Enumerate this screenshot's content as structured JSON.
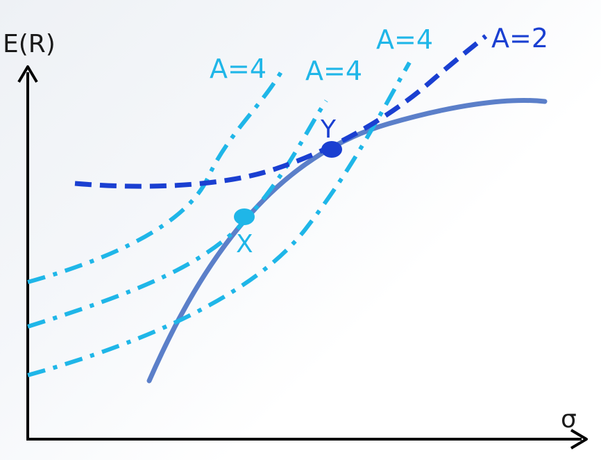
{
  "axes": {
    "y_label": "E(R)",
    "x_label": "σ"
  },
  "curves": {
    "frontier": {
      "color": "#5b7fc9"
    },
    "indifference_a2": {
      "label": "A=2",
      "color": "#1a3fd1"
    },
    "indifference_a4_left": {
      "label": "A=4",
      "color": "#1fb6e8"
    },
    "indifference_a4_middle": {
      "label": "A=4",
      "color": "#1fb6e8"
    },
    "indifference_a4_right": {
      "label": "A=4",
      "color": "#1fb6e8"
    }
  },
  "points": {
    "x": {
      "label": "X",
      "color": "#1fb6e8"
    },
    "y": {
      "label": "Y",
      "color": "#1a3fd1"
    }
  },
  "colors": {
    "axis": "#000000",
    "background": "#f3f5f8"
  }
}
